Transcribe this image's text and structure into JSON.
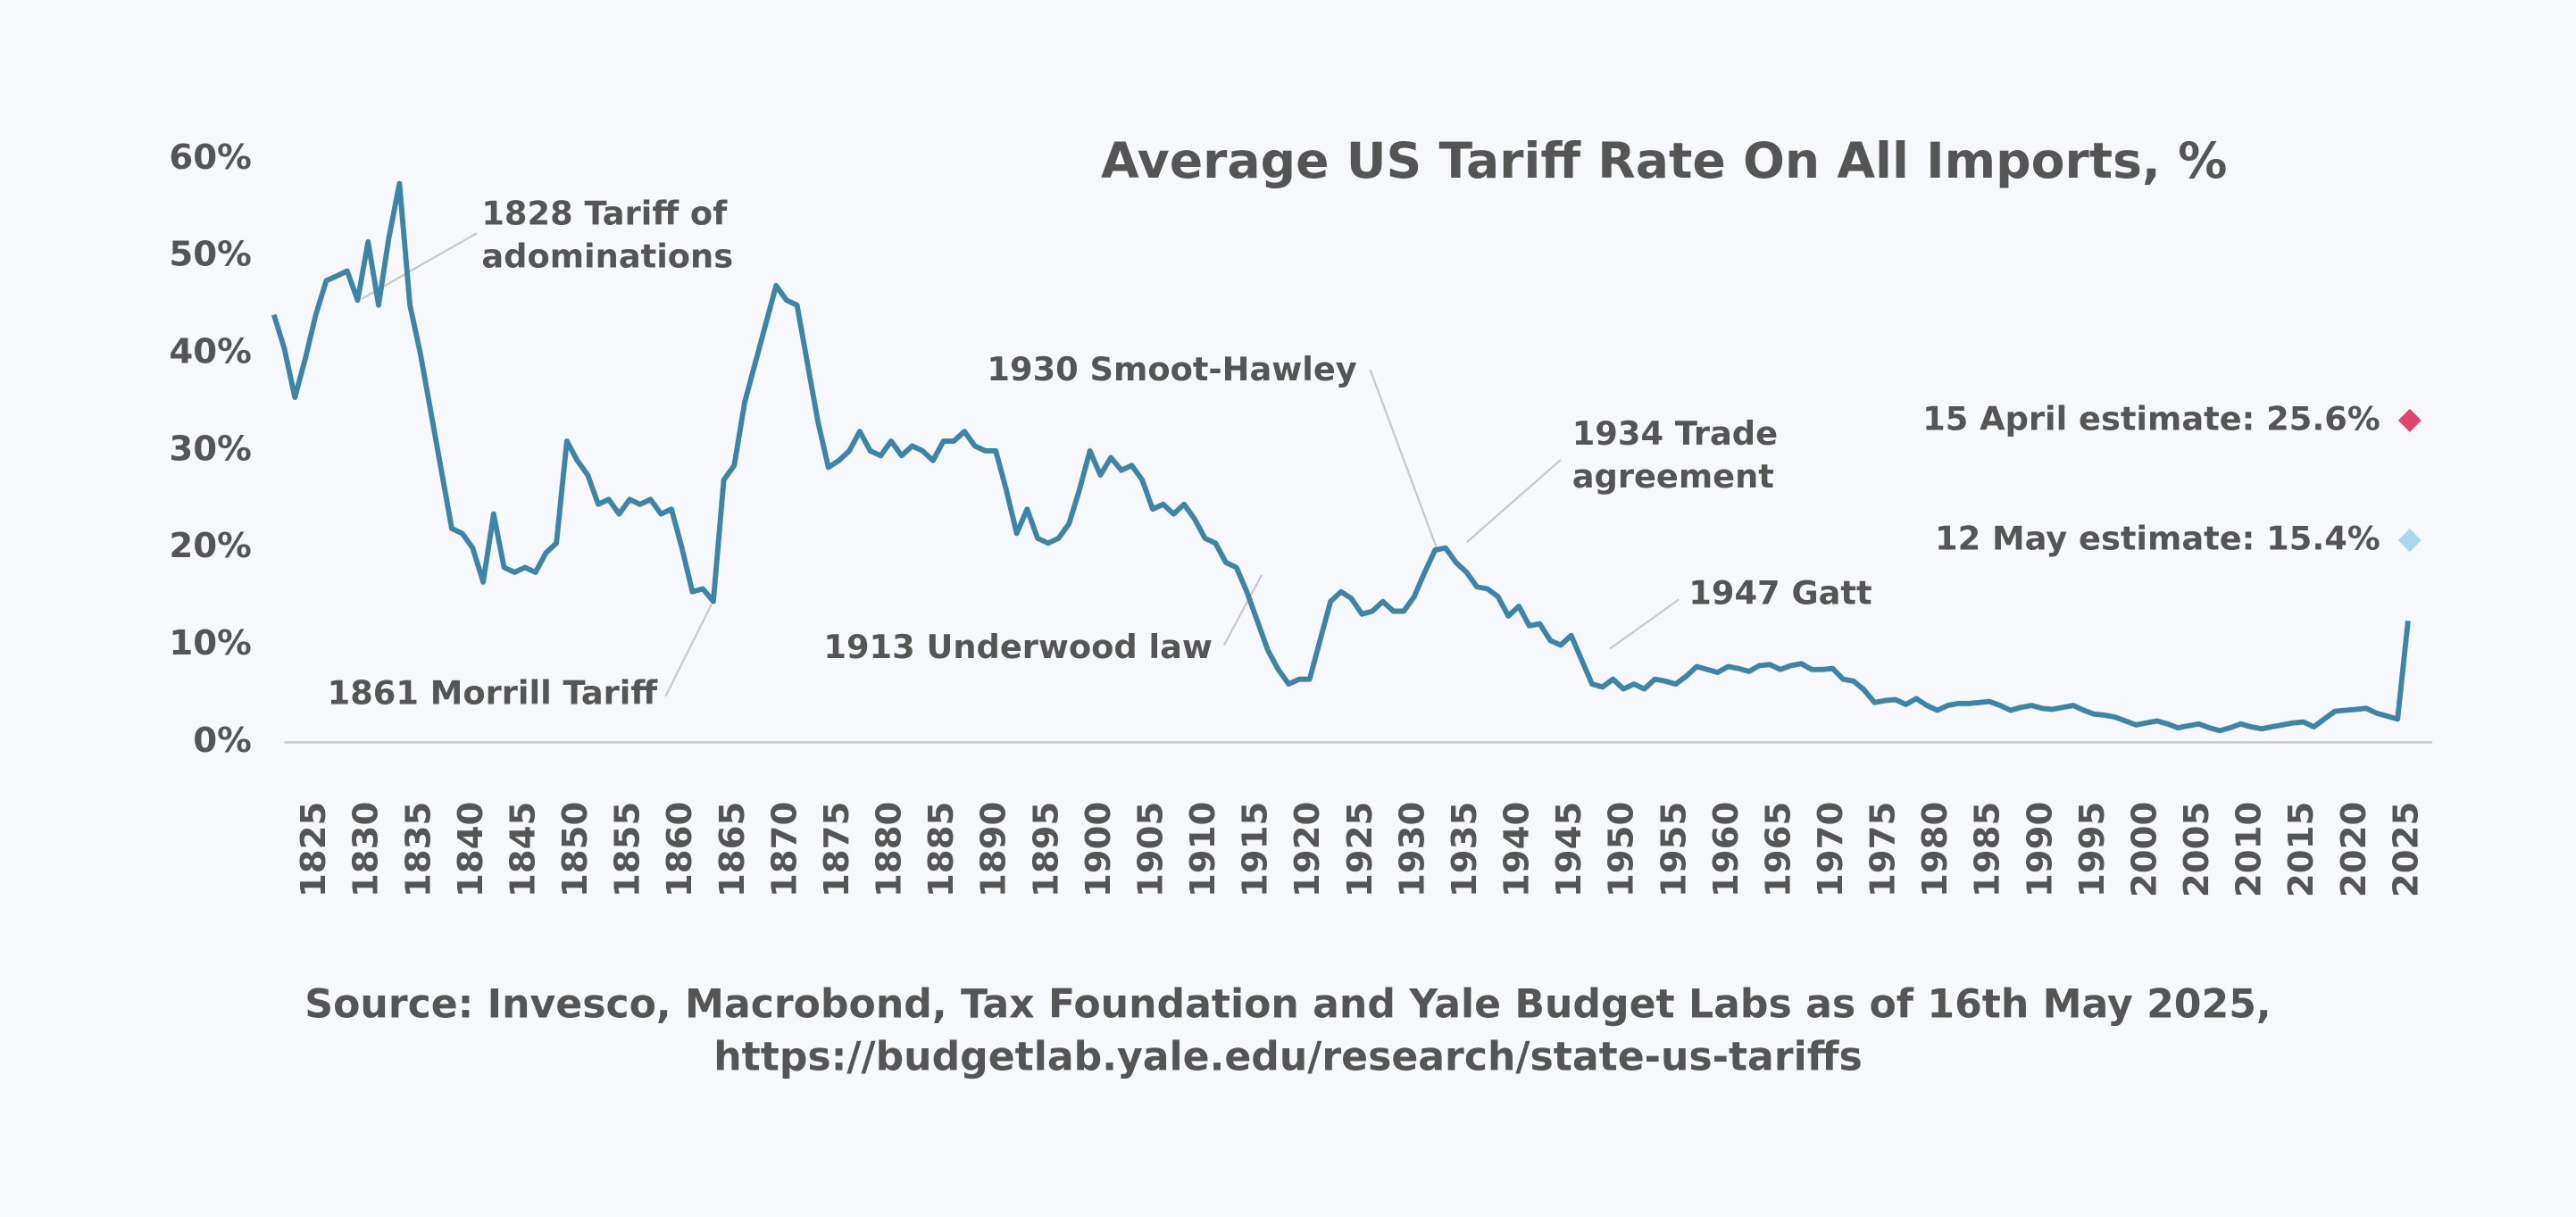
{
  "chart_data": {
    "type": "line",
    "title": "Average US Tariff Rate On All Imports, %",
    "source": [
      "Source: Invesco, Macrobond, Tax Foundation and Yale Budget Labs as of 16th May 2025,",
      "https://budgetlab.yale.edu/research/state-us-tariffs"
    ],
    "x": [
      1821,
      1822,
      1823,
      1824,
      1825,
      1826,
      1827,
      1828,
      1829,
      1830,
      1831,
      1832,
      1833,
      1834,
      1835,
      1836,
      1837,
      1838,
      1839,
      1840,
      1841,
      1842,
      1843,
      1844,
      1845,
      1846,
      1847,
      1848,
      1849,
      1850,
      1851,
      1852,
      1853,
      1854,
      1855,
      1856,
      1857,
      1858,
      1859,
      1860,
      1861,
      1862,
      1863,
      1864,
      1865,
      1866,
      1867,
      1868,
      1869,
      1870,
      1871,
      1872,
      1873,
      1874,
      1875,
      1876,
      1877,
      1878,
      1879,
      1880,
      1881,
      1882,
      1883,
      1884,
      1885,
      1886,
      1887,
      1888,
      1889,
      1890,
      1891,
      1892,
      1893,
      1894,
      1895,
      1896,
      1897,
      1898,
      1899,
      1900,
      1901,
      1902,
      1903,
      1904,
      1905,
      1906,
      1907,
      1908,
      1909,
      1910,
      1911,
      1912,
      1913,
      1914,
      1915,
      1916,
      1917,
      1918,
      1919,
      1920,
      1921,
      1922,
      1923,
      1924,
      1925,
      1926,
      1927,
      1928,
      1929,
      1930,
      1931,
      1932,
      1933,
      1934,
      1935,
      1936,
      1937,
      1938,
      1939,
      1940,
      1941,
      1942,
      1943,
      1944,
      1945,
      1946,
      1947,
      1948,
      1949,
      1950,
      1951,
      1952,
      1953,
      1954,
      1955,
      1956,
      1957,
      1958,
      1959,
      1960,
      1961,
      1962,
      1963,
      1964,
      1965,
      1966,
      1967,
      1968,
      1969,
      1970,
      1971,
      1972,
      1973,
      1974,
      1975,
      1976,
      1977,
      1978,
      1979,
      1980,
      1981,
      1982,
      1983,
      1984,
      1985,
      1986,
      1987,
      1988,
      1989,
      1990,
      1991,
      1992,
      1993,
      1994,
      1995,
      1996,
      1997,
      1998,
      1999,
      2000,
      2001,
      2002,
      2003,
      2004,
      2005,
      2006,
      2007,
      2008,
      2009,
      2010,
      2011,
      2012,
      2013,
      2014,
      2015,
      2016,
      2017,
      2018,
      2019,
      2020,
      2021,
      2022,
      2023,
      2024,
      2025
    ],
    "series": [
      {
        "color": "#3d85a8",
        "values": [
          44,
          40.5,
          35.5,
          39.5,
          44,
          47.5,
          48,
          48.5,
          45.5,
          51.5,
          45,
          52,
          57.5,
          45,
          40,
          34,
          28,
          22,
          21.5,
          20,
          16.5,
          23.5,
          18,
          17.5,
          18,
          17.5,
          19.5,
          20.5,
          31,
          29,
          27.5,
          24.5,
          25,
          23.5,
          25,
          24.5,
          25,
          23.5,
          24,
          20,
          15.5,
          15.8,
          14.5,
          27,
          28.5,
          35,
          39,
          43,
          47,
          45.5,
          45,
          39,
          33,
          28.3,
          29,
          30,
          32,
          30,
          29.5,
          31,
          29.5,
          30.5,
          30,
          29,
          31,
          31,
          32,
          30.5,
          30,
          30,
          26,
          21.5,
          24,
          21,
          20.5,
          21,
          22.5,
          26,
          30,
          27.5,
          29.3,
          28,
          28.5,
          27,
          24,
          24.5,
          23.5,
          24.5,
          23,
          21,
          20.5,
          18.5,
          18,
          15.5,
          12.5,
          9.5,
          7.5,
          6,
          6.5,
          6.5,
          10.5,
          14.5,
          15.5,
          14.8,
          13.2,
          13.5,
          14.5,
          13.5,
          13.5,
          15,
          17.5,
          19.8,
          20,
          18.5,
          17.5,
          16,
          15.8,
          15,
          13,
          14,
          12,
          12.2,
          10.5,
          10,
          11,
          8.5,
          6,
          5.7,
          6.5,
          5.5,
          6,
          5.5,
          6.5,
          6.3,
          6,
          6.8,
          7.8,
          7.5,
          7.2,
          7.8,
          7.6,
          7.3,
          7.9,
          8.0,
          7.5,
          7.9,
          8.1,
          7.5,
          7.5,
          7.6,
          6.5,
          6.3,
          5.4,
          4.1,
          4.3,
          4.4,
          3.9,
          4.5,
          3.8,
          3.3,
          3.8,
          4.0,
          4.0,
          4.1,
          4.2,
          3.8,
          3.3,
          3.6,
          3.8,
          3.5,
          3.4,
          3.6,
          3.8,
          3.3,
          2.9,
          2.8,
          2.6,
          2.2,
          1.8,
          2.0,
          2.2,
          1.9,
          1.5,
          1.7,
          1.9,
          1.5,
          1.2,
          1.5,
          1.9,
          1.6,
          1.4,
          1.6,
          1.8,
          2.0,
          2.1,
          1.6,
          2.4,
          3.2,
          3.3,
          3.4,
          3.5,
          3.0,
          2.7,
          2.4,
          12.5
        ]
      }
    ],
    "xlim": [
      1820,
      2027
    ],
    "xticks": [
      1825,
      1830,
      1835,
      1840,
      1845,
      1850,
      1855,
      1860,
      1865,
      1870,
      1875,
      1880,
      1885,
      1890,
      1895,
      1900,
      1905,
      1910,
      1915,
      1920,
      1925,
      1930,
      1935,
      1940,
      1945,
      1950,
      1955,
      1960,
      1965,
      1970,
      1975,
      1980,
      1985,
      1990,
      1995,
      2000,
      2005,
      2010,
      2015,
      2020,
      2025
    ],
    "ylim": [
      0,
      60
    ],
    "yticks": [
      {
        "value": 0,
        "label": "0%"
      },
      {
        "value": 10,
        "label": "10%"
      },
      {
        "value": 20,
        "label": "20%"
      },
      {
        "value": 30,
        "label": "30%"
      },
      {
        "value": 40,
        "label": "40%"
      },
      {
        "value": 50,
        "label": "50%"
      },
      {
        "value": 60,
        "label": "60%"
      }
    ],
    "annotations": [
      {
        "text": [
          "1828 Tariff of",
          "adominations"
        ]
      },
      {
        "text": [
          "1861 Morrill Tariff"
        ]
      },
      {
        "text": [
          "1930 Smoot-Hawley"
        ]
      },
      {
        "text": [
          "1934 Trade",
          "agreement"
        ]
      },
      {
        "text": [
          "1913 Underwood law"
        ]
      },
      {
        "text": [
          "1947 Gatt"
        ]
      }
    ],
    "estimates": [
      {
        "label": "15 April estimate: 25.6%",
        "color": "#e0436b"
      },
      {
        "label": "12 May estimate: 15.4%",
        "color": "#a9d8ea"
      }
    ]
  }
}
